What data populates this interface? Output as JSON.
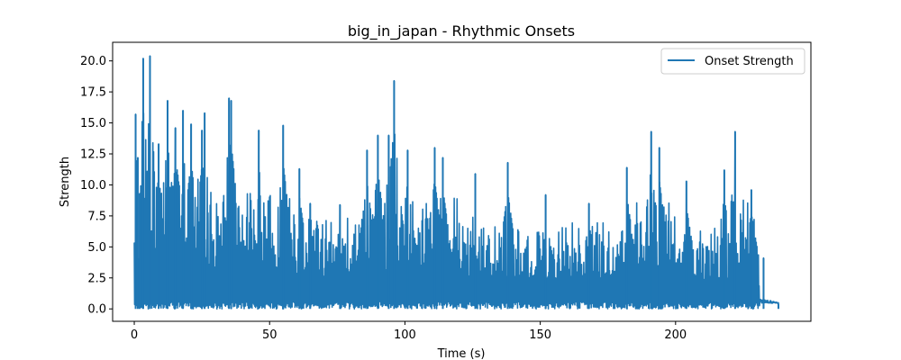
{
  "chart_data": {
    "type": "line",
    "title": "big_in_japan - Rhythmic Onsets",
    "xlabel": "Time (s)",
    "ylabel": "Strength",
    "xlim": [
      -8,
      250
    ],
    "ylim": [
      -1.0,
      21.5
    ],
    "xticks": [
      0,
      50,
      100,
      150,
      200
    ],
    "xtick_labels": [
      "0",
      "50",
      "100",
      "150",
      "200"
    ],
    "yticks": [
      0.0,
      2.5,
      5.0,
      7.5,
      10.0,
      12.5,
      15.0,
      17.5,
      20.0
    ],
    "ytick_labels": [
      "0.0",
      "2.5",
      "5.0",
      "7.5",
      "10.0",
      "12.5",
      "15.0",
      "17.5",
      "20.0"
    ],
    "grid": false,
    "legend": {
      "position": "top-right",
      "entries": [
        "Onset Strength"
      ]
    },
    "series": [
      {
        "name": "Onset Strength",
        "color": "#1f77b4",
        "x_range": [
          0,
          238
        ],
        "approx_samples": 10250,
        "notable_peaks": [
          {
            "x": 0.5,
            "y": 15.7
          },
          {
            "x": 1.3,
            "y": 12.2
          },
          {
            "x": 2.0,
            "y": 9.3
          },
          {
            "x": 3.3,
            "y": 20.2
          },
          {
            "x": 5.8,
            "y": 20.4
          },
          {
            "x": 9.0,
            "y": 13.3
          },
          {
            "x": 12.3,
            "y": 16.8
          },
          {
            "x": 15.2,
            "y": 14.6
          },
          {
            "x": 18.0,
            "y": 16.0
          },
          {
            "x": 21.0,
            "y": 14.9
          },
          {
            "x": 25.0,
            "y": 14.4
          },
          {
            "x": 26.0,
            "y": 15.8
          },
          {
            "x": 35.0,
            "y": 17.0
          },
          {
            "x": 35.8,
            "y": 16.8
          },
          {
            "x": 46.0,
            "y": 14.4
          },
          {
            "x": 55.0,
            "y": 14.8
          },
          {
            "x": 61.0,
            "y": 11.3
          },
          {
            "x": 65.0,
            "y": 8.5
          },
          {
            "x": 76.0,
            "y": 8.4
          },
          {
            "x": 86.0,
            "y": 12.8
          },
          {
            "x": 90.0,
            "y": 14.0
          },
          {
            "x": 94.0,
            "y": 14.0
          },
          {
            "x": 96.0,
            "y": 18.4
          },
          {
            "x": 101.0,
            "y": 12.8
          },
          {
            "x": 111.0,
            "y": 13.0
          },
          {
            "x": 114.0,
            "y": 12.2
          },
          {
            "x": 126.0,
            "y": 10.9
          },
          {
            "x": 138.0,
            "y": 11.8
          },
          {
            "x": 152.0,
            "y": 9.2
          },
          {
            "x": 168.0,
            "y": 8.5
          },
          {
            "x": 182.0,
            "y": 11.4
          },
          {
            "x": 191.0,
            "y": 14.3
          },
          {
            "x": 194.0,
            "y": 13.0
          },
          {
            "x": 204.0,
            "y": 10.3
          },
          {
            "x": 218.0,
            "y": 11.2
          },
          {
            "x": 222.0,
            "y": 14.3
          },
          {
            "x": 228.0,
            "y": 9.6
          },
          {
            "x": 232.5,
            "y": 4.1
          },
          {
            "x": 238.0,
            "y": 0.4
          }
        ]
      }
    ]
  }
}
